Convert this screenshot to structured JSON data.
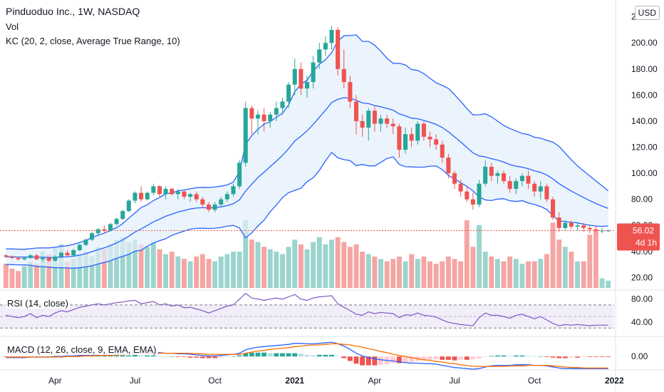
{
  "header": {
    "title": "Pinduoduo Inc., 1W, NASDAQ",
    "vol_label": "Vol",
    "kc_label": "KC (20, 2, close, Average True Range, 10)",
    "currency": "USD"
  },
  "price_badge": {
    "price": "56.02",
    "countdown": "4d 1h"
  },
  "rsi": {
    "label": "RSI (14, close)"
  },
  "macd": {
    "label": "MACD (12, 26, close, 9, EMA, EMA)"
  },
  "colors": {
    "up": "#26a69a",
    "down": "#ef5350",
    "vol_up": "#9bd4ce",
    "vol_down": "#f5a5a3",
    "channel": "#2962ff",
    "channel_fill": "#e3f0fb",
    "rsi_line": "#7e57c2",
    "rsi_band": "#ede7f6",
    "macd_line": "#2962ff",
    "signal_line": "#ff6d00"
  },
  "chart_data": {
    "type": "candlestick",
    "x_labels": [
      {
        "index": 8,
        "label": "Apr"
      },
      {
        "index": 21,
        "label": "Jul"
      },
      {
        "index": 34,
        "label": "Oct"
      },
      {
        "index": 47,
        "label": "2021",
        "bold": true
      },
      {
        "index": 60,
        "label": "Apr"
      },
      {
        "index": 73,
        "label": "Jul"
      },
      {
        "index": 86,
        "label": "Oct"
      },
      {
        "index": 99,
        "label": "2022",
        "bold": true
      }
    ],
    "price_axis": {
      "ticks": [
        20,
        40,
        60,
        80,
        100,
        120,
        140,
        160,
        180,
        200,
        220
      ],
      "range": [
        12,
        222
      ]
    },
    "rsi_axis": {
      "ticks": [
        40,
        80
      ],
      "upper": 70,
      "lower": 30,
      "range": [
        18,
        92
      ]
    },
    "macd_axis": {
      "ticks": [
        0
      ]
    },
    "candles": [
      [
        37,
        38,
        35,
        36
      ],
      [
        36,
        37,
        34,
        35
      ],
      [
        35,
        36,
        33,
        34
      ],
      [
        34,
        36,
        33,
        35
      ],
      [
        35,
        38,
        34,
        37
      ],
      [
        37,
        38,
        33,
        34
      ],
      [
        34,
        36,
        32,
        35
      ],
      [
        35,
        36,
        32,
        33
      ],
      [
        33,
        37,
        32,
        36
      ],
      [
        36,
        40,
        35,
        39
      ],
      [
        39,
        41,
        36,
        37
      ],
      [
        37,
        42,
        36,
        41
      ],
      [
        41,
        46,
        40,
        45
      ],
      [
        45,
        50,
        44,
        49
      ],
      [
        49,
        55,
        48,
        54
      ],
      [
        54,
        58,
        52,
        57
      ],
      [
        57,
        60,
        54,
        56
      ],
      [
        56,
        62,
        55,
        61
      ],
      [
        61,
        66,
        60,
        65
      ],
      [
        65,
        72,
        64,
        71
      ],
      [
        71,
        80,
        70,
        79
      ],
      [
        79,
        86,
        77,
        85
      ],
      [
        85,
        90,
        78,
        80
      ],
      [
        80,
        86,
        79,
        85
      ],
      [
        85,
        92,
        83,
        90
      ],
      [
        90,
        91,
        82,
        84
      ],
      [
        84,
        90,
        80,
        88
      ],
      [
        88,
        89,
        83,
        84
      ],
      [
        84,
        88,
        80,
        86
      ],
      [
        86,
        87,
        80,
        82
      ],
      [
        82,
        85,
        78,
        84
      ],
      [
        84,
        86,
        78,
        80
      ],
      [
        80,
        82,
        74,
        76
      ],
      [
        76,
        78,
        70,
        72
      ],
      [
        72,
        78,
        70,
        76
      ],
      [
        76,
        82,
        74,
        80
      ],
      [
        80,
        86,
        78,
        84
      ],
      [
        84,
        92,
        82,
        90
      ],
      [
        90,
        110,
        88,
        108
      ],
      [
        108,
        155,
        105,
        150
      ],
      [
        150,
        152,
        130,
        142
      ],
      [
        142,
        148,
        130,
        145
      ],
      [
        145,
        150,
        132,
        140
      ],
      [
        140,
        147,
        135,
        145
      ],
      [
        145,
        155,
        140,
        150
      ],
      [
        150,
        158,
        145,
        155
      ],
      [
        155,
        170,
        150,
        168
      ],
      [
        168,
        188,
        160,
        180
      ],
      [
        180,
        185,
        160,
        165
      ],
      [
        165,
        175,
        158,
        170
      ],
      [
        170,
        190,
        165,
        185
      ],
      [
        185,
        200,
        180,
        195
      ],
      [
        195,
        205,
        190,
        200
      ],
      [
        200,
        213,
        195,
        210
      ],
      [
        210,
        212,
        175,
        180
      ],
      [
        180,
        195,
        165,
        170
      ],
      [
        170,
        175,
        150,
        155
      ],
      [
        155,
        160,
        130,
        140
      ],
      [
        140,
        145,
        128,
        135
      ],
      [
        135,
        150,
        125,
        148
      ],
      [
        148,
        152,
        132,
        138
      ],
      [
        138,
        145,
        132,
        142
      ],
      [
        142,
        145,
        135,
        138
      ],
      [
        138,
        142,
        130,
        136
      ],
      [
        136,
        138,
        112,
        118
      ],
      [
        118,
        135,
        115,
        130
      ],
      [
        130,
        135,
        120,
        125
      ],
      [
        125,
        140,
        122,
        138
      ],
      [
        138,
        140,
        125,
        128
      ],
      [
        128,
        132,
        120,
        126
      ],
      [
        126,
        130,
        118,
        122
      ],
      [
        122,
        125,
        108,
        112
      ],
      [
        112,
        115,
        96,
        100
      ],
      [
        100,
        102,
        88,
        92
      ],
      [
        92,
        95,
        82,
        86
      ],
      [
        86,
        90,
        78,
        80
      ],
      [
        80,
        85,
        72,
        76
      ],
      [
        76,
        95,
        74,
        92
      ],
      [
        92,
        110,
        90,
        105
      ],
      [
        105,
        108,
        94,
        98
      ],
      [
        98,
        102,
        92,
        100
      ],
      [
        100,
        102,
        92,
        94
      ],
      [
        94,
        98,
        85,
        88
      ],
      [
        88,
        96,
        84,
        94
      ],
      [
        94,
        100,
        90,
        98
      ],
      [
        98,
        102,
        88,
        92
      ],
      [
        92,
        94,
        82,
        86
      ],
      [
        86,
        94,
        80,
        90
      ],
      [
        90,
        92,
        78,
        80
      ],
      [
        80,
        82,
        64,
        66
      ],
      [
        66,
        70,
        55,
        58
      ],
      [
        58,
        64,
        56,
        62
      ],
      [
        62,
        64,
        57,
        59
      ],
      [
        59,
        62,
        56,
        60
      ],
      [
        60,
        62,
        55,
        58
      ],
      [
        58,
        60,
        54,
        57
      ],
      [
        57,
        60,
        55,
        56
      ],
      [
        56,
        58,
        54,
        56
      ],
      [
        56,
        57,
        55,
        56
      ]
    ],
    "keltner_upper": [
      null,
      null,
      null,
      null,
      null,
      null,
      null,
      null,
      null,
      null,
      null,
      null,
      null,
      null,
      null,
      null,
      null,
      null,
      null,
      null,
      null,
      null,
      null,
      null,
      null,
      null,
      null,
      null,
      null,
      null,
      null,
      null,
      null,
      null,
      null,
      null,
      null,
      null,
      null,
      null,
      null,
      null,
      null,
      null,
      null,
      null,
      null,
      null,
      null,
      null,
      null,
      null,
      null,
      null,
      null,
      null,
      null,
      null,
      null,
      null,
      null,
      null,
      null,
      null,
      null,
      null,
      null,
      null,
      null,
      null,
      null,
      null,
      null,
      null,
      null,
      null,
      null,
      null,
      null,
      null,
      null,
      null,
      null,
      null,
      null,
      null,
      null,
      null,
      null,
      null,
      null,
      null,
      null,
      null,
      null,
      null,
      null,
      null,
      null
    ],
    "volume": [
      20,
      16,
      14,
      18,
      22,
      20,
      30,
      28,
      34,
      36,
      22,
      24,
      28,
      30,
      26,
      34,
      32,
      36,
      40,
      42,
      38,
      40,
      36,
      34,
      38,
      32,
      28,
      30,
      26,
      24,
      22,
      26,
      28,
      24,
      22,
      26,
      28,
      30,
      30,
      56,
      40,
      38,
      34,
      32,
      30,
      28,
      34,
      40,
      36,
      32,
      38,
      42,
      36,
      40,
      42,
      38,
      34,
      36,
      30,
      28,
      26,
      24,
      22,
      24,
      26,
      22,
      28,
      24,
      26,
      22,
      20,
      22,
      26,
      24,
      22,
      56,
      34,
      52,
      30,
      26,
      24,
      22,
      26,
      24,
      20,
      22,
      22,
      24,
      28,
      54,
      40,
      34,
      30,
      22,
      22,
      44,
      48,
      8,
      6
    ],
    "rsi": [
      52,
      50,
      48,
      50,
      55,
      48,
      52,
      50,
      56,
      60,
      58,
      62,
      66,
      68,
      70,
      72,
      70,
      72,
      74,
      75,
      77,
      78,
      72,
      74,
      76,
      70,
      72,
      68,
      70,
      65,
      66,
      63,
      60,
      56,
      60,
      64,
      68,
      70,
      80,
      90,
      82,
      80,
      78,
      80,
      82,
      80,
      84,
      88,
      80,
      78,
      82,
      84,
      85,
      86,
      72,
      66,
      60,
      54,
      52,
      58,
      55,
      57,
      56,
      55,
      48,
      53,
      52,
      56,
      52,
      51,
      49,
      44,
      40,
      38,
      36,
      35,
      34,
      48,
      56,
      52,
      52,
      50,
      47,
      52,
      54,
      50,
      46,
      50,
      44,
      38,
      34,
      36,
      35,
      36,
      35,
      34,
      35,
      35,
      35
    ],
    "macd": [
      -2,
      -2,
      -2,
      -2,
      -1,
      -1,
      -1,
      -1,
      0,
      0,
      1,
      1,
      2,
      2,
      3,
      3,
      4,
      4,
      5,
      5,
      6,
      7,
      7,
      7,
      7,
      7,
      6,
      6,
      5,
      5,
      4,
      3,
      2,
      1,
      1,
      2,
      3,
      4,
      6,
      12,
      15,
      17,
      18,
      19,
      20,
      21,
      22,
      24,
      24,
      23,
      23,
      24,
      25,
      26,
      23,
      19,
      13,
      6,
      1,
      -2,
      -4,
      -6,
      -7,
      -8,
      -10,
      -11,
      -12,
      -12,
      -13,
      -13,
      -14,
      -16,
      -18,
      -20,
      -21,
      -22,
      -23,
      -22,
      -19,
      -17,
      -16,
      -16,
      -16,
      -15,
      -15,
      -15,
      -16,
      -16,
      -17,
      -19,
      -21,
      -22,
      -22,
      -22,
      -22,
      -22,
      -22,
      -22,
      -22
    ],
    "signal": [
      -1,
      -1,
      -1,
      -1,
      -1,
      -1,
      -1,
      -1,
      -1,
      -1,
      0,
      0,
      0,
      1,
      1,
      1,
      2,
      2,
      3,
      3,
      4,
      4,
      5,
      5,
      5,
      6,
      6,
      6,
      6,
      6,
      6,
      5,
      5,
      4,
      4,
      4,
      4,
      4,
      4,
      6,
      8,
      10,
      11,
      13,
      14,
      15,
      16,
      18,
      19,
      20,
      21,
      21,
      22,
      23,
      23,
      22,
      21,
      19,
      17,
      14,
      12,
      9,
      7,
      4,
      2,
      0,
      -2,
      -4,
      -6,
      -7,
      -9,
      -10,
      -12,
      -13,
      -15,
      -16,
      -18,
      -18,
      -18,
      -18,
      -18,
      -18,
      -17,
      -17,
      -17,
      -16,
      -16,
      -16,
      -16,
      -17,
      -18,
      -19,
      -20,
      -20,
      -21,
      -21,
      -21,
      -21,
      -21
    ]
  }
}
